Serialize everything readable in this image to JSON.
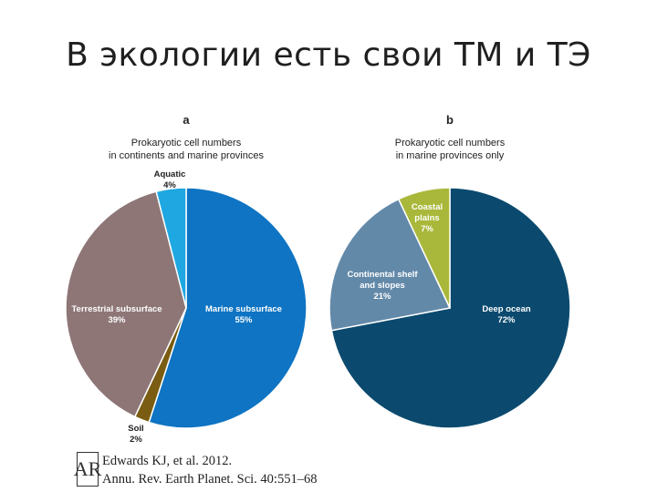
{
  "slide_title": "В экологии есть свои ТМ и ТЭ",
  "citation": {
    "line1": "Edwards KJ, et al. 2012.",
    "line2": "Annu. Rev. Earth Planet. Sci. 40:551–68"
  },
  "chart_data": [
    {
      "type": "pie",
      "panel_label": "a",
      "title": "Prokaryotic cell numbers\nin continents and marine provinces",
      "slices": [
        {
          "label": "Marine subsurface",
          "value": 55,
          "pct": "55%",
          "color": "#0e74c3"
        },
        {
          "label": "Soil",
          "value": 2,
          "pct": "2%",
          "color": "#7a5d12"
        },
        {
          "label": "Terrestrial subsurface",
          "value": 39,
          "pct": "39%",
          "color": "#8e7677"
        },
        {
          "label": "Aquatic",
          "value": 4,
          "pct": "4%",
          "color": "#1ea7e1"
        }
      ]
    },
    {
      "type": "pie",
      "panel_label": "b",
      "title": "Prokaryotic cell numbers\nin marine provinces only",
      "slices": [
        {
          "label": "Deep ocean",
          "value": 72,
          "pct": "72%",
          "color": "#0b4a6e"
        },
        {
          "label": "Continental shelf\nand slopes",
          "value": 21,
          "pct": "21%",
          "color": "#6389a9"
        },
        {
          "label": "Coastal\nplains",
          "value": 7,
          "pct": "7%",
          "color": "#a9b83a"
        }
      ]
    }
  ]
}
